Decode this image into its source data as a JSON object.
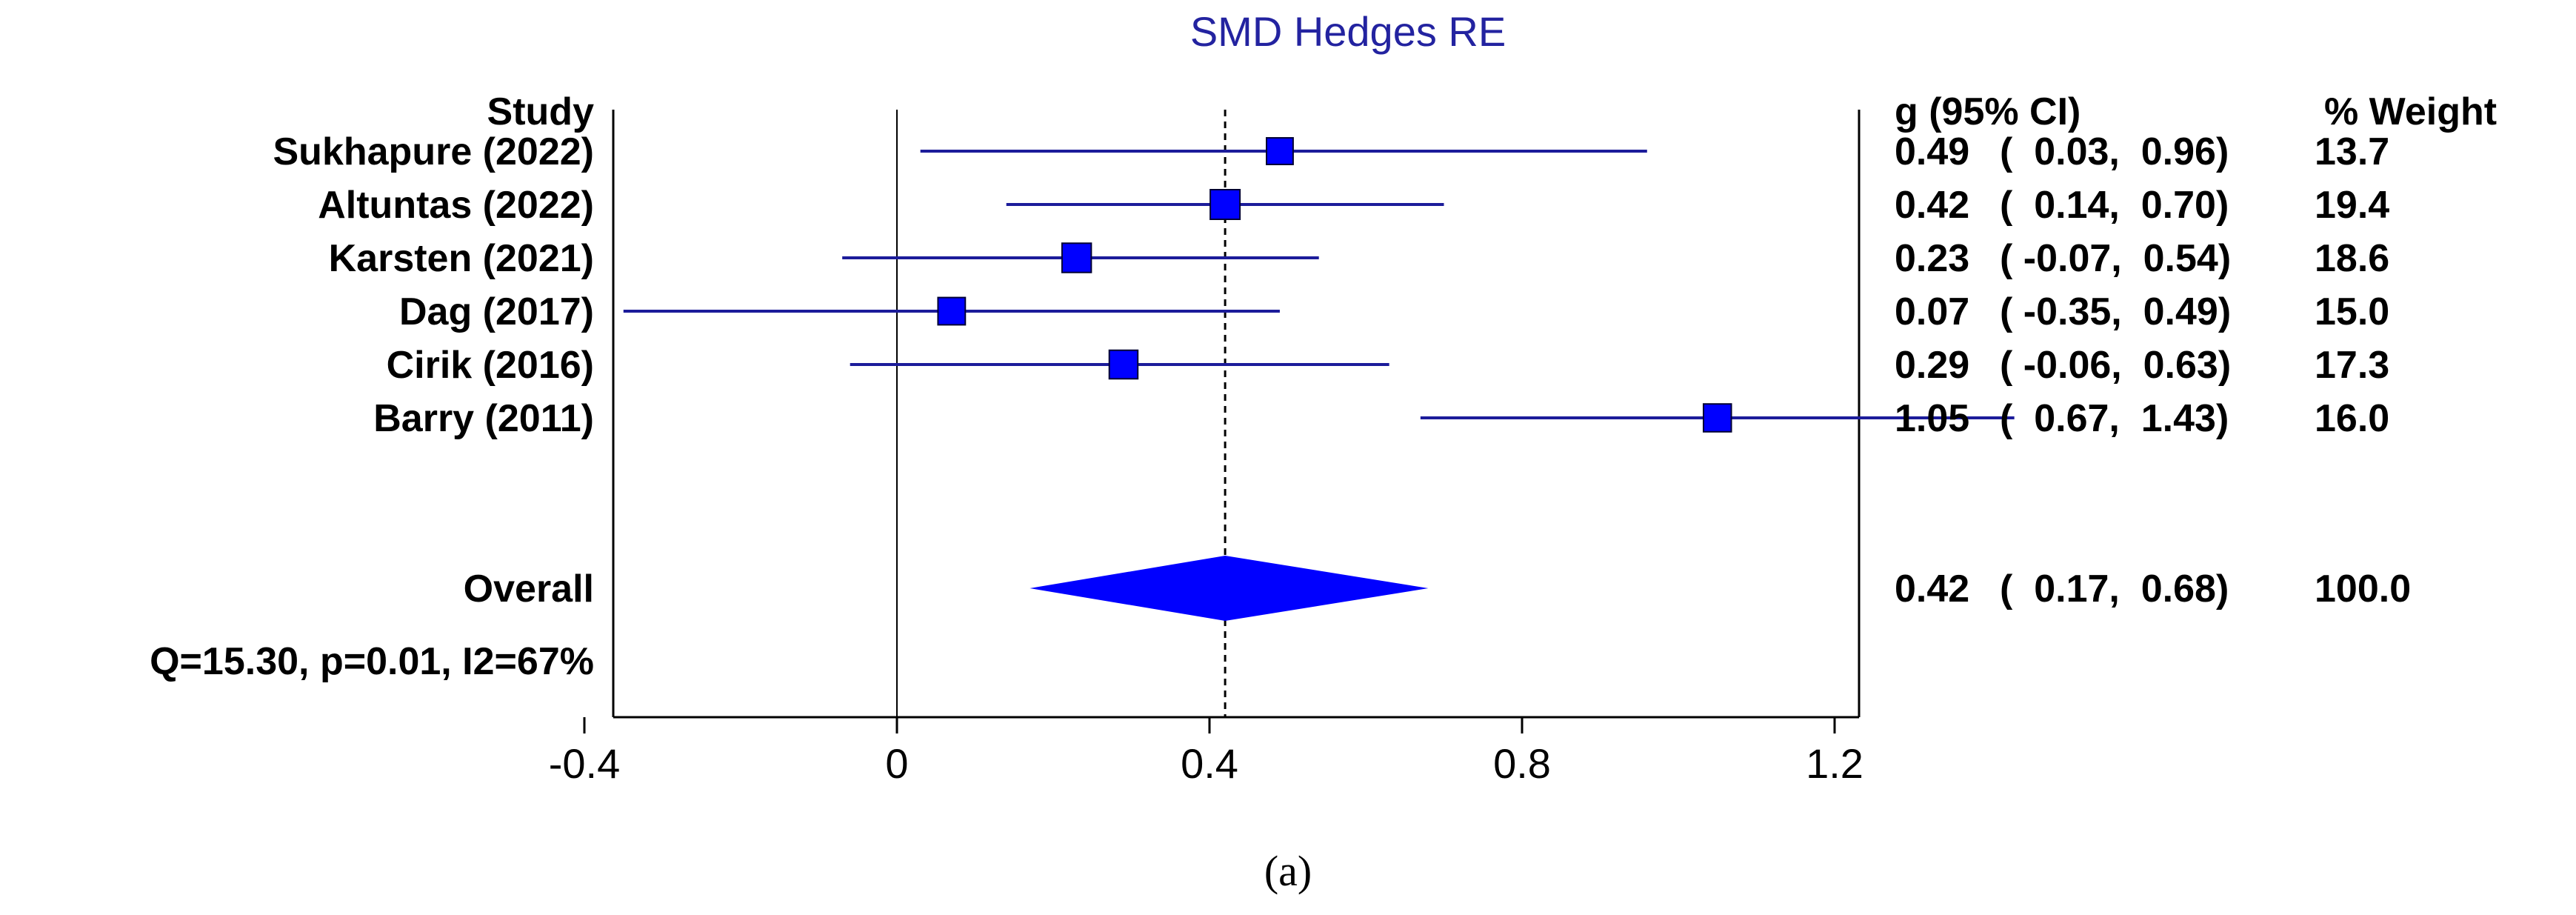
{
  "chart_data": {
    "type": "forest",
    "title": "SMD Hedges RE",
    "caption": "(a)",
    "headers": {
      "study": "Study",
      "estimate": "g (95% CI)",
      "weight": "% Weight"
    },
    "studies": [
      {
        "label": "Sukhapure (2022)",
        "g": 0.49,
        "lower": 0.03,
        "upper": 0.96,
        "weight": 13.7,
        "g_text": "0.49",
        "ci_text": "(  0.03,  0.96)",
        "weight_text": "13.7"
      },
      {
        "label": "Altuntas (2022)",
        "g": 0.42,
        "lower": 0.14,
        "upper": 0.7,
        "weight": 19.4,
        "g_text": "0.42",
        "ci_text": "(  0.14,  0.70)",
        "weight_text": "19.4"
      },
      {
        "label": "Karsten (2021)",
        "g": 0.23,
        "lower": -0.07,
        "upper": 0.54,
        "weight": 18.6,
        "g_text": "0.23",
        "ci_text": "( -0.07,  0.54)",
        "weight_text": "18.6"
      },
      {
        "label": "Dag (2017)",
        "g": 0.07,
        "lower": -0.35,
        "upper": 0.49,
        "weight": 15.0,
        "g_text": "0.07",
        "ci_text": "( -0.35,  0.49)",
        "weight_text": "15.0"
      },
      {
        "label": "Cirik (2016)",
        "g": 0.29,
        "lower": -0.06,
        "upper": 0.63,
        "weight": 17.3,
        "g_text": "0.29",
        "ci_text": "( -0.06,  0.63)",
        "weight_text": "17.3"
      },
      {
        "label": "Barry (2011)",
        "g": 1.05,
        "lower": 0.67,
        "upper": 1.43,
        "weight": 16.0,
        "g_text": "1.05",
        "ci_text": "(  0.67,  1.43)",
        "weight_text": "16.0"
      }
    ],
    "overall": {
      "label": "Overall",
      "g": 0.42,
      "lower": 0.17,
      "upper": 0.68,
      "weight": 100.0,
      "g_text": "0.42",
      "ci_text": "(  0.17,  0.68)",
      "weight_text": "100.0",
      "heterogeneity": "Q=15.30, p=0.01, I2=67%"
    },
    "x_axis": {
      "ticks": [
        -0.4,
        0,
        0.4,
        0.8,
        1.2
      ],
      "tick_labels": [
        "-0.4",
        "0",
        "0.4",
        "0.8",
        "1.2"
      ],
      "xlim": [
        -0.4,
        1.35
      ]
    },
    "reference_line": 0,
    "summary_line": 0.42,
    "colors": {
      "marker": "#0000ff",
      "ci_line": "#1c1c9a",
      "diamond": "#0000ff",
      "title": "#2323a0",
      "axis": "#000000"
    }
  }
}
